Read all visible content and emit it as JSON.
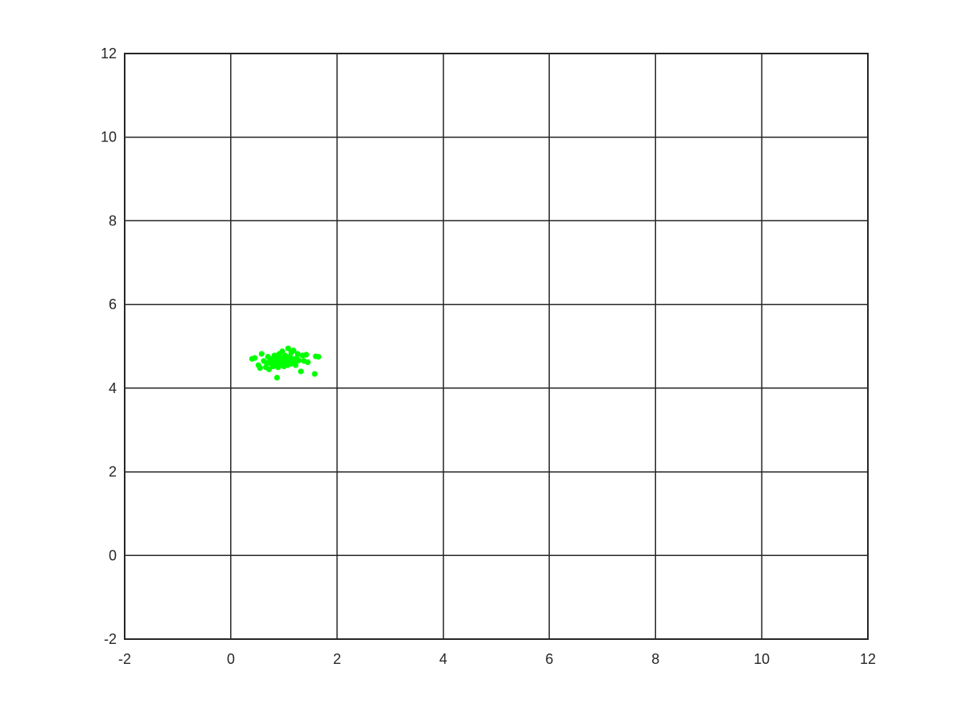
{
  "chart_data": {
    "type": "scatter",
    "title": "",
    "xlabel": "",
    "ylabel": "",
    "xlim": [
      -2,
      12
    ],
    "ylim": [
      -2,
      12
    ],
    "x_ticks": [
      -2,
      0,
      2,
      4,
      6,
      8,
      10,
      12
    ],
    "y_ticks": [
      -2,
      0,
      2,
      4,
      6,
      8,
      10,
      12
    ],
    "x_tick_labels": [
      "-2",
      "0",
      "2",
      "4",
      "6",
      "8",
      "10",
      "12"
    ],
    "y_tick_labels": [
      "-2",
      "0",
      "2",
      "4",
      "6",
      "8",
      "10",
      "12"
    ],
    "grid": true,
    "legend": "none",
    "colors": {
      "marker": "#00ff00",
      "axes": "#262626",
      "background": "#ffffff"
    },
    "series": [
      {
        "marker": "filled-circle",
        "points": [
          [
            0.4,
            4.7
          ],
          [
            0.45,
            4.72
          ],
          [
            0.52,
            4.55
          ],
          [
            0.55,
            4.48
          ],
          [
            0.58,
            4.82
          ],
          [
            0.62,
            4.65
          ],
          [
            0.66,
            4.5
          ],
          [
            0.68,
            4.6
          ],
          [
            0.7,
            4.75
          ],
          [
            0.72,
            4.45
          ],
          [
            0.74,
            4.68
          ],
          [
            0.76,
            4.58
          ],
          [
            0.78,
            4.7
          ],
          [
            0.8,
            4.52
          ],
          [
            0.81,
            4.62
          ],
          [
            0.82,
            4.78
          ],
          [
            0.84,
            4.55
          ],
          [
            0.85,
            4.65
          ],
          [
            0.86,
            4.72
          ],
          [
            0.87,
            4.25
          ],
          [
            0.88,
            4.6
          ],
          [
            0.89,
            4.5
          ],
          [
            0.9,
            4.68
          ],
          [
            0.91,
            4.82
          ],
          [
            0.92,
            4.58
          ],
          [
            0.93,
            4.62
          ],
          [
            0.94,
            4.74
          ],
          [
            0.95,
            4.55
          ],
          [
            0.96,
            4.66
          ],
          [
            0.97,
            4.88
          ],
          [
            0.98,
            4.6
          ],
          [
            0.99,
            4.7
          ],
          [
            1.0,
            4.52
          ],
          [
            1.01,
            4.64
          ],
          [
            1.02,
            4.78
          ],
          [
            1.03,
            4.58
          ],
          [
            1.04,
            4.68
          ],
          [
            1.05,
            4.62
          ],
          [
            1.06,
            4.72
          ],
          [
            1.07,
            4.55
          ],
          [
            1.08,
            4.95
          ],
          [
            1.09,
            4.66
          ],
          [
            1.1,
            4.6
          ],
          [
            1.11,
            4.75
          ],
          [
            1.12,
            4.68
          ],
          [
            1.13,
            4.58
          ],
          [
            1.14,
            4.85
          ],
          [
            1.15,
            4.64
          ],
          [
            1.16,
            4.7
          ],
          [
            1.18,
            4.9
          ],
          [
            1.2,
            4.62
          ],
          [
            1.22,
            4.55
          ],
          [
            1.24,
            4.72
          ],
          [
            1.26,
            4.82
          ],
          [
            1.28,
            4.66
          ],
          [
            1.32,
            4.4
          ],
          [
            1.35,
            4.78
          ],
          [
            1.38,
            4.65
          ],
          [
            1.42,
            4.8
          ],
          [
            1.45,
            4.62
          ],
          [
            1.58,
            4.34
          ],
          [
            1.6,
            4.76
          ],
          [
            1.65,
            4.75
          ]
        ]
      }
    ]
  }
}
